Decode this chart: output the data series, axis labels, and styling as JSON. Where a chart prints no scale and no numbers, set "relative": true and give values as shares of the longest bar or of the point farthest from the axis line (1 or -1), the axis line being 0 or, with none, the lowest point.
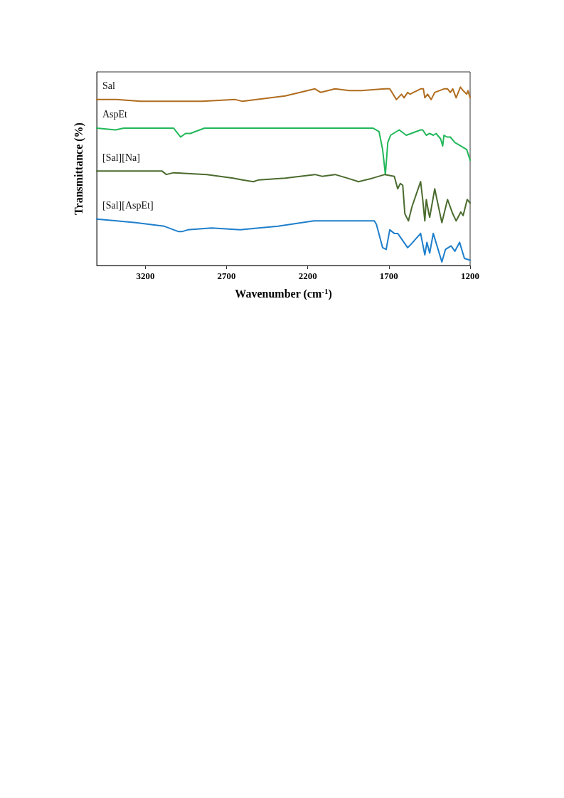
{
  "chart_data": {
    "type": "line",
    "relative": true,
    "xlabel": "Wavenumber (cm$^{-1}$)",
    "ylabel": "Transmittance (%)",
    "xlim": [
      3500,
      1200
    ],
    "xticks": [
      3200,
      2700,
      2200,
      1700,
      1200
    ],
    "grid": false,
    "legend": false,
    "marker": "none",
    "line_style": "solid",
    "series": [
      {
        "name": "Sal",
        "color": "#b06d1f",
        "x": [
          3500,
          3378,
          3230,
          3040,
          2851,
          2646,
          2602,
          2339,
          2156,
          2120,
          2032,
          1944,
          1870,
          1725,
          1695,
          1654,
          1623,
          1607,
          1585,
          1571,
          1505,
          1488,
          1479,
          1462,
          1440,
          1418,
          1361,
          1339,
          1322,
          1307,
          1286,
          1260,
          1243,
          1221,
          1213,
          1200
        ],
        "values": [
          0.93,
          0.93,
          0.92,
          0.92,
          0.92,
          0.93,
          0.92,
          0.95,
          0.99,
          0.97,
          0.99,
          0.98,
          0.98,
          0.99,
          0.99,
          0.93,
          0.96,
          0.94,
          0.97,
          0.96,
          0.99,
          0.99,
          0.94,
          0.96,
          0.93,
          0.97,
          0.99,
          0.99,
          0.97,
          0.99,
          0.94,
          1.0,
          0.98,
          0.96,
          0.98,
          0.94
        ]
      },
      {
        "name": "AspEt",
        "color": "#22b85a",
        "x": [
          3500,
          3384,
          3334,
          3027,
          2983,
          2953,
          2923,
          2895,
          2836,
          2339,
          1799,
          1761,
          1739,
          1722,
          1707,
          1690,
          1637,
          1593,
          1505,
          1492,
          1470,
          1449,
          1427,
          1410,
          1382,
          1369,
          1361,
          1343,
          1322,
          1294,
          1257,
          1221,
          1200
        ],
        "values": [
          0.77,
          0.76,
          0.77,
          0.77,
          0.72,
          0.74,
          0.74,
          0.75,
          0.77,
          0.77,
          0.77,
          0.75,
          0.65,
          0.51,
          0.69,
          0.73,
          0.76,
          0.73,
          0.76,
          0.76,
          0.73,
          0.74,
          0.73,
          0.74,
          0.71,
          0.67,
          0.73,
          0.72,
          0.72,
          0.69,
          0.67,
          0.65,
          0.59
        ]
      },
      {
        "name": "[Sal][Na]",
        "color": "#4a6b2e",
        "x": [
          3500,
          3230,
          3099,
          3071,
          3027,
          2821,
          2660,
          2602,
          2536,
          2501,
          2339,
          2156,
          2112,
          2032,
          1958,
          1887,
          1799,
          1725,
          1667,
          1646,
          1630,
          1615,
          1602,
          1580,
          1558,
          1505,
          1492,
          1479,
          1470,
          1454,
          1449,
          1418,
          1374,
          1339,
          1307,
          1286,
          1257,
          1243,
          1218,
          1200
        ],
        "values": [
          0.53,
          0.53,
          0.53,
          0.51,
          0.52,
          0.51,
          0.49,
          0.48,
          0.47,
          0.48,
          0.49,
          0.51,
          0.5,
          0.51,
          0.49,
          0.47,
          0.49,
          0.51,
          0.5,
          0.43,
          0.46,
          0.45,
          0.29,
          0.25,
          0.33,
          0.47,
          0.37,
          0.25,
          0.37,
          0.29,
          0.27,
          0.43,
          0.24,
          0.37,
          0.29,
          0.25,
          0.3,
          0.28,
          0.37,
          0.35
        ]
      },
      {
        "name": "[Sal][AspEt]",
        "color": "#1f7fcb",
        "x": [
          3500,
          3378,
          3260,
          3084,
          2996,
          2975,
          2939,
          2792,
          2616,
          2501,
          2383,
          2163,
          2018,
          1790,
          1777,
          1739,
          1717,
          1695,
          1667,
          1646,
          1623,
          1585,
          1563,
          1505,
          1479,
          1466,
          1449,
          1427,
          1374,
          1352,
          1317,
          1294,
          1265,
          1235,
          1200
        ],
        "values": [
          0.26,
          0.25,
          0.24,
          0.22,
          0.19,
          0.19,
          0.2,
          0.21,
          0.2,
          0.21,
          0.22,
          0.25,
          0.25,
          0.25,
          0.23,
          0.1,
          0.09,
          0.2,
          0.18,
          0.18,
          0.15,
          0.1,
          0.12,
          0.18,
          0.06,
          0.13,
          0.07,
          0.18,
          0.02,
          0.09,
          0.11,
          0.08,
          0.13,
          0.04,
          0.03
        ]
      }
    ]
  }
}
